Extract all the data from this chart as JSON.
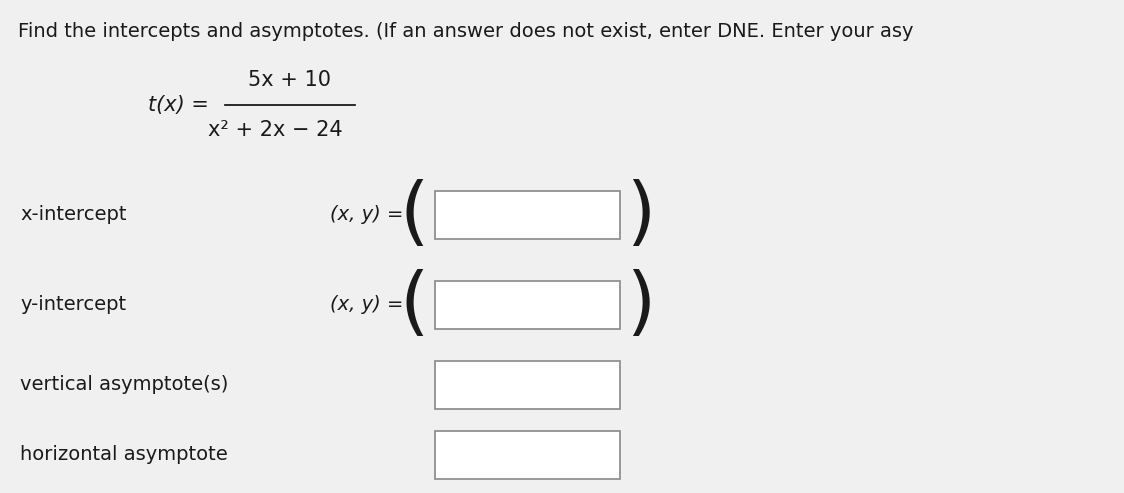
{
  "background_color": "#f0f0f0",
  "inner_bg": "#ffffff",
  "title_text": "Find the intercepts and asymptotes. (If an answer does not exist, enter DNE. Enter your asy",
  "title_fontsize": 14,
  "formula": {
    "tx_label": "t(x) =",
    "numerator": "5x + 10",
    "denominator": "x² + 2x − 24"
  },
  "rows": [
    {
      "label": "x-intercept",
      "has_prefix": true,
      "has_parens": true
    },
    {
      "label": "y-intercept",
      "has_prefix": true,
      "has_parens": true
    },
    {
      "label": "vertical asymptote(s)",
      "has_prefix": false,
      "has_parens": false
    },
    {
      "label": "horizontal asymptote",
      "has_prefix": false,
      "has_parens": false
    }
  ],
  "prefix_text": "(x, y) =",
  "text_color": "#1a1a1a",
  "box_color": "#ffffff",
  "box_edge_color": "#888888",
  "label_fontsize": 14,
  "prefix_fontsize": 14,
  "formula_fontsize": 14
}
